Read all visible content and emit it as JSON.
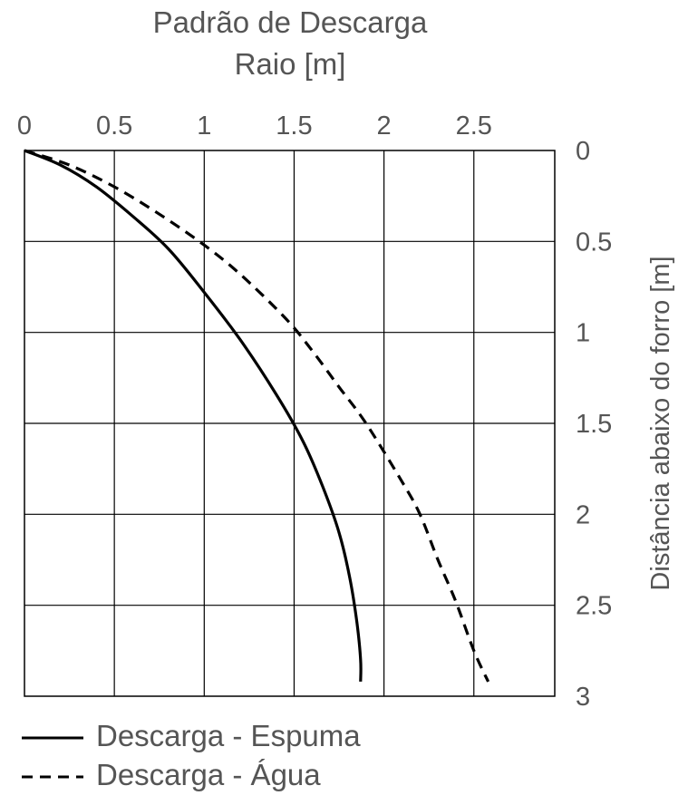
{
  "chart_data": {
    "type": "line",
    "title": "Padrão de Descarga",
    "xlabel": "Raio [m]",
    "ylabel": "Distância abaixo do forro [m]",
    "x_ticks": [
      "0",
      "0.5",
      "1",
      "1.5",
      "2",
      "2.5"
    ],
    "y_ticks": [
      "0",
      "0.5",
      "1",
      "1.5",
      "2",
      "2.5",
      "3"
    ],
    "xlim": [
      0,
      2.95
    ],
    "ylim": [
      0,
      3.0
    ],
    "y_inverted": true,
    "x_axis_position": "top",
    "y_axis_position": "right",
    "grid": true,
    "legend_position": "bottom-left",
    "series": [
      {
        "name": "Descarga - Espuma",
        "line_style": "solid",
        "points": [
          [
            0,
            0
          ],
          [
            0.2,
            0.08
          ],
          [
            0.4,
            0.2
          ],
          [
            0.6,
            0.36
          ],
          [
            0.8,
            0.54
          ],
          [
            1.0,
            0.78
          ],
          [
            1.2,
            1.04
          ],
          [
            1.4,
            1.34
          ],
          [
            1.55,
            1.6
          ],
          [
            1.66,
            1.85
          ],
          [
            1.75,
            2.1
          ],
          [
            1.81,
            2.35
          ],
          [
            1.85,
            2.6
          ],
          [
            1.87,
            2.8
          ],
          [
            1.87,
            2.92
          ]
        ]
      },
      {
        "name": "Descarga - Água",
        "line_style": "dashed",
        "points": [
          [
            0,
            0
          ],
          [
            0.25,
            0.08
          ],
          [
            0.5,
            0.2
          ],
          [
            0.75,
            0.35
          ],
          [
            1.0,
            0.52
          ],
          [
            1.2,
            0.68
          ],
          [
            1.45,
            0.92
          ],
          [
            1.6,
            1.1
          ],
          [
            1.75,
            1.3
          ],
          [
            1.9,
            1.5
          ],
          [
            2.1,
            1.82
          ],
          [
            2.2,
            2.0
          ],
          [
            2.3,
            2.25
          ],
          [
            2.4,
            2.48
          ],
          [
            2.5,
            2.75
          ],
          [
            2.58,
            2.92
          ]
        ]
      }
    ]
  }
}
